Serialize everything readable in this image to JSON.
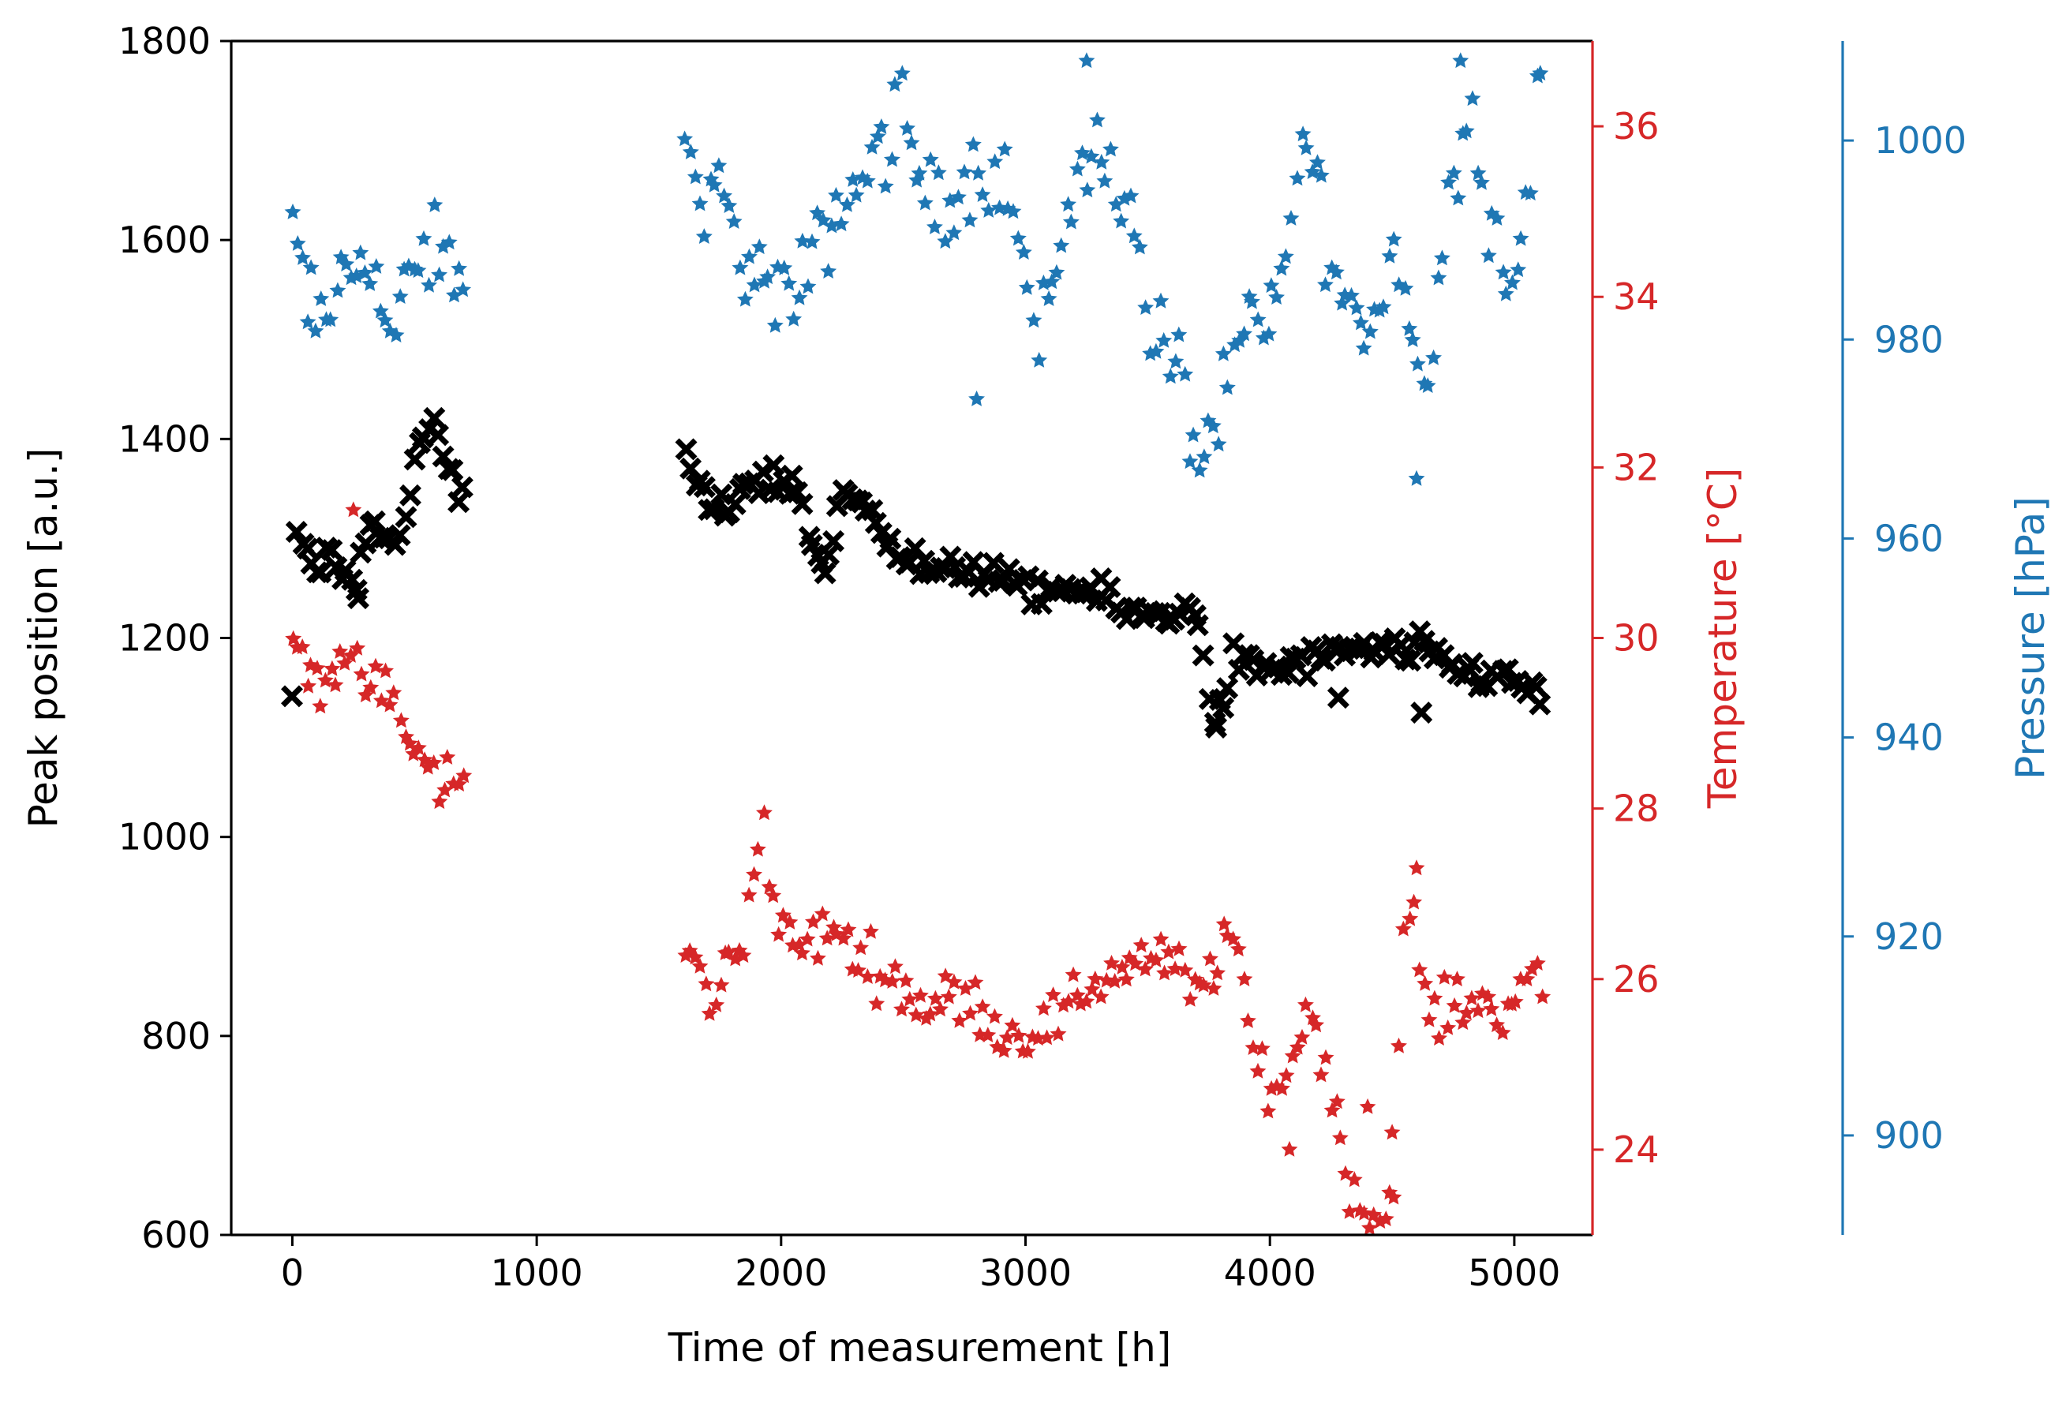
{
  "chart_data": {
    "type": "scatter",
    "title": "",
    "xlabel": "Time of measurement [h]",
    "xlim": [
      -250,
      5320
    ],
    "xticks": [
      0,
      1000,
      2000,
      3000,
      4000,
      5000
    ],
    "xtick_labels": [
      "0",
      "1000",
      "2000",
      "3000",
      "4000",
      "5000"
    ],
    "colors": {
      "black": "#000000",
      "red": "#d62728",
      "blue": "#1f77b4"
    },
    "axes": [
      {
        "id": "peak",
        "label": "Peak position [a.u.]",
        "side": "left",
        "color": "#000000",
        "ylim": [
          600,
          1800
        ],
        "ticks": [
          600,
          800,
          1000,
          1200,
          1400,
          1600,
          1800
        ],
        "tick_labels": [
          "600",
          "800",
          "1000",
          "1200",
          "1400",
          "1600",
          "1800"
        ]
      },
      {
        "id": "temp",
        "label": "Temperature [°C]",
        "side": "right",
        "color": "#d62728",
        "ylim": [
          23.0,
          37.0
        ],
        "ticks": [
          24,
          26,
          28,
          30,
          32,
          34,
          36
        ],
        "tick_labels": [
          "24",
          "26",
          "28",
          "30",
          "32",
          "34",
          "36"
        ]
      },
      {
        "id": "press",
        "label": "Pressure [hPa]",
        "side": "right-offset",
        "color": "#1f77b4",
        "ylim": [
          890,
          1010
        ],
        "ticks": [
          900,
          920,
          940,
          960,
          980,
          1000
        ],
        "tick_labels": [
          "900",
          "920",
          "940",
          "960",
          "980",
          "1000"
        ]
      }
    ],
    "series": [
      {
        "name": "Peak position",
        "axis": "peak",
        "marker": "x",
        "color": "#000000",
        "anchors": [
          [
            0,
            1320
          ],
          [
            100,
            1265
          ],
          [
            150,
            1290
          ],
          [
            200,
            1270
          ],
          [
            250,
            1250
          ],
          [
            300,
            1310
          ],
          [
            450,
            1305
          ],
          [
            550,
            1420
          ],
          [
            680,
            1345
          ],
          [
            1620,
            1380
          ],
          [
            1700,
            1325
          ],
          [
            1800,
            1335
          ],
          [
            1850,
            1360
          ],
          [
            2050,
            1355
          ],
          [
            2100,
            1320
          ],
          [
            2180,
            1265
          ],
          [
            2250,
            1345
          ],
          [
            2400,
            1325
          ],
          [
            2500,
            1280
          ],
          [
            2600,
            1265
          ],
          [
            2800,
            1270
          ],
          [
            3000,
            1245
          ],
          [
            3200,
            1250
          ],
          [
            3500,
            1220
          ],
          [
            3700,
            1230
          ],
          [
            3780,
            1110
          ],
          [
            3850,
            1180
          ],
          [
            4000,
            1165
          ],
          [
            4200,
            1180
          ],
          [
            4600,
            1190
          ],
          [
            4800,
            1165
          ],
          [
            5000,
            1160
          ],
          [
            5100,
            1140
          ]
        ],
        "noise": 14,
        "outliers": [
          [
            2180,
            1265
          ],
          [
            3780,
            1110
          ],
          [
            4280,
            1140
          ],
          [
            4620,
            1125
          ],
          [
            270,
            1240
          ]
        ]
      },
      {
        "name": "Temperature",
        "axis": "temp",
        "marker": "star",
        "color": "#d62728",
        "anchors": [
          [
            0,
            30.0
          ],
          [
            100,
            29.5
          ],
          [
            200,
            29.7
          ],
          [
            300,
            29.5
          ],
          [
            400,
            29.3
          ],
          [
            550,
            28.4
          ],
          [
            680,
            28.3
          ],
          [
            1620,
            26.3
          ],
          [
            1700,
            25.8
          ],
          [
            1850,
            26.4
          ],
          [
            1920,
            28.2
          ],
          [
            1950,
            27.1
          ],
          [
            2050,
            26.3
          ],
          [
            2200,
            26.6
          ],
          [
            2400,
            26.1
          ],
          [
            2600,
            25.7
          ],
          [
            2800,
            25.8
          ],
          [
            2900,
            25.3
          ],
          [
            3100,
            25.5
          ],
          [
            3300,
            26.0
          ],
          [
            3500,
            26.3
          ],
          [
            3700,
            25.9
          ],
          [
            3850,
            26.5
          ],
          [
            3950,
            24.9
          ],
          [
            4050,
            24.7
          ],
          [
            4150,
            25.7
          ],
          [
            4250,
            24.9
          ],
          [
            4300,
            23.8
          ],
          [
            4400,
            23.1
          ],
          [
            4500,
            23.4
          ],
          [
            4550,
            26.6
          ],
          [
            4600,
            26.6
          ],
          [
            4650,
            25.6
          ],
          [
            4800,
            25.7
          ],
          [
            4950,
            25.7
          ],
          [
            5100,
            26.0
          ]
        ],
        "noise": 0.28,
        "outliers": [
          [
            250,
            31.5
          ],
          [
            4080,
            24.0
          ],
          [
            4400,
            24.5
          ],
          [
            4500,
            24.2
          ],
          [
            4600,
            27.3
          ]
        ]
      },
      {
        "name": "Pressure",
        "axis": "press",
        "marker": "star",
        "color": "#1f77b4",
        "anchors": [
          [
            0,
            991
          ],
          [
            100,
            980
          ],
          [
            200,
            986
          ],
          [
            300,
            990
          ],
          [
            400,
            980
          ],
          [
            550,
            989
          ],
          [
            650,
            987
          ],
          [
            1620,
            997
          ],
          [
            1750,
            994
          ],
          [
            1850,
            988
          ],
          [
            1950,
            985
          ],
          [
            2050,
            983
          ],
          [
            2200,
            992
          ],
          [
            2350,
            997
          ],
          [
            2500,
            1003
          ],
          [
            2600,
            993
          ],
          [
            2750,
            996
          ],
          [
            2900,
            998
          ],
          [
            3000,
            987
          ],
          [
            3050,
            978
          ],
          [
            3150,
            992
          ],
          [
            3300,
            1000
          ],
          [
            3400,
            995
          ],
          [
            3500,
            983
          ],
          [
            3650,
            975
          ],
          [
            3700,
            968
          ],
          [
            3800,
            972
          ],
          [
            3900,
            982
          ],
          [
            4000,
            980
          ],
          [
            4150,
            1001
          ],
          [
            4250,
            988
          ],
          [
            4350,
            980
          ],
          [
            4450,
            984
          ],
          [
            4500,
            990
          ],
          [
            4650,
            974
          ],
          [
            4700,
            988
          ],
          [
            4800,
            1005
          ],
          [
            4900,
            993
          ],
          [
            5000,
            984
          ],
          [
            5100,
            1005
          ]
        ],
        "noise": 4,
        "outliers": [
          [
            2800,
            974
          ],
          [
            3250,
            1008
          ],
          [
            4600,
            966
          ],
          [
            4780,
            1008
          ]
        ]
      }
    ]
  }
}
